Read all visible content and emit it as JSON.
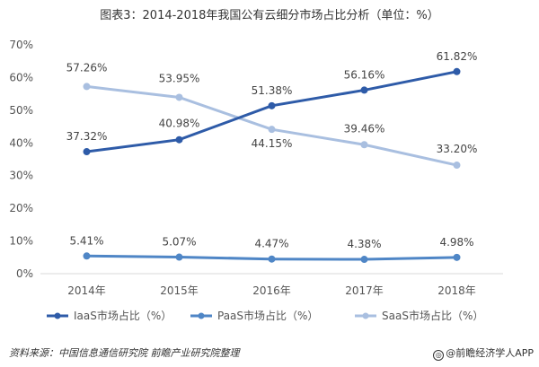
{
  "title": "图表3：2014-2018年我国公有云细分市场占比分析（单位：%）",
  "footer": {
    "source": "资料来源：中国信息通信研究院 前瞻产业研究院整理",
    "brand": "@前瞻经济学人APP"
  },
  "colors": {
    "iaas": "#2e5ba8",
    "paas": "#4f86c6",
    "saas": "#a9bfe0",
    "axis": "#d9d9d9",
    "text": "#555555"
  },
  "chart_data": {
    "type": "line",
    "categories": [
      "2014年",
      "2015年",
      "2016年",
      "2017年",
      "2018年"
    ],
    "y_ticks": [
      "0%",
      "10%",
      "20%",
      "30%",
      "40%",
      "50%",
      "60%",
      "70%"
    ],
    "ylim": [
      0,
      70
    ],
    "grid": false,
    "legend_position": "bottom",
    "series": [
      {
        "name": "IaaS市场占比（%）",
        "key": "iaas",
        "values": [
          37.32,
          40.98,
          51.38,
          56.16,
          61.82
        ],
        "labels": [
          "37.32%",
          "40.98%",
          "51.38%",
          "56.16%",
          "61.82%"
        ]
      },
      {
        "name": "PaaS市场占比（%）",
        "key": "paas",
        "values": [
          5.41,
          5.07,
          4.47,
          4.38,
          4.98
        ],
        "labels": [
          "5.41%",
          "5.07%",
          "4.47%",
          "4.38%",
          "4.98%"
        ]
      },
      {
        "name": "SaaS市场占比（%）",
        "key": "saas",
        "values": [
          57.26,
          53.95,
          44.15,
          39.46,
          33.2
        ],
        "labels": [
          "57.26%",
          "53.95%",
          "44.15%",
          "39.46%",
          "33.20%"
        ]
      }
    ]
  }
}
